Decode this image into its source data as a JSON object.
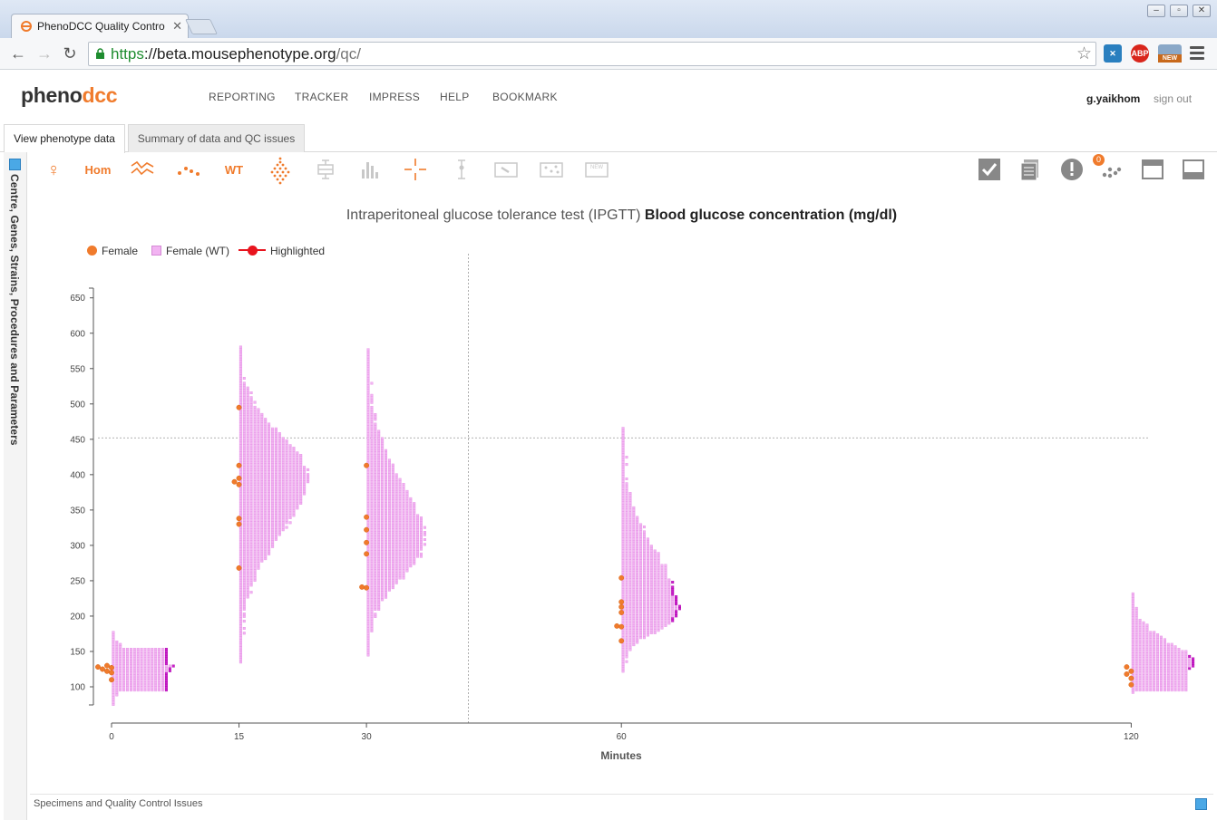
{
  "browser": {
    "tab_title": "PhenoDCC Quality Contro",
    "url_https": "https",
    "url_host": "://beta.mousephenotype.org",
    "url_path": "/qc/",
    "ext_abp": "ABP",
    "ext_new": "NEW"
  },
  "app": {
    "logo_a": "pheno",
    "logo_b": "dcc",
    "nav": [
      "REPORTING",
      "TRACKER",
      "IMPRESS",
      "HELP",
      "BOOKMARK"
    ],
    "user": "g.yaikhom",
    "signout": "sign out"
  },
  "page_tabs": [
    "View phenotype data",
    "Summary of data and QC issues"
  ],
  "sidebar_label": "Centre, Genes, Strains, Procedures and Parameters",
  "controls": {
    "hom": "Hom",
    "wt": "WT",
    "new": "NEW",
    "qc_badge": "0",
    "accent": "#f07b2c",
    "inactive": "#c8c8c8"
  },
  "chart_data": {
    "type": "scatter",
    "title_prefix": "Intraperitoneal glucose tolerance test (IPGTT)",
    "title_bold": "Blood glucose concentration (mg/dl)",
    "xlabel": "Minutes",
    "ylabel": "",
    "x_ticks": [
      0,
      15,
      30,
      60,
      120
    ],
    "y_ticks": [
      100,
      150,
      200,
      250,
      300,
      350,
      400,
      450,
      500,
      550,
      600,
      650
    ],
    "ylim": [
      70,
      700
    ],
    "crosshair": {
      "x": 42,
      "y": 452
    },
    "legend": [
      {
        "label": "Female",
        "color": "#f07b2c"
      },
      {
        "label": "Female (WT)",
        "color": "#f2b3f2"
      },
      {
        "label": "Highlighted",
        "color": "#e8141e"
      }
    ],
    "wt_distribution": [
      {
        "minute": 0,
        "min": 75,
        "max": 178,
        "median": 128
      },
      {
        "minute": 15,
        "min": 135,
        "max": 582,
        "median": 400
      },
      {
        "minute": 30,
        "min": 145,
        "max": 577,
        "median": 305
      },
      {
        "minute": 60,
        "min": 122,
        "max": 468,
        "median": 205
      },
      {
        "minute": 120,
        "min": 92,
        "max": 232,
        "median": 130
      }
    ],
    "female_points": [
      {
        "minute": 0,
        "values": [
          110,
          120,
          122,
          125,
          127,
          128,
          130
        ]
      },
      {
        "minute": 15,
        "values": [
          268,
          330,
          338,
          386,
          390,
          395,
          413,
          495
        ]
      },
      {
        "minute": 30,
        "values": [
          240,
          241,
          288,
          304,
          322,
          340,
          413
        ]
      },
      {
        "minute": 60,
        "values": [
          165,
          185,
          186,
          205,
          213,
          220,
          254
        ]
      },
      {
        "minute": 120,
        "values": [
          103,
          112,
          118,
          122,
          128
        ]
      }
    ]
  },
  "bottom_panel_label": "Specimens and Quality Control Issues"
}
